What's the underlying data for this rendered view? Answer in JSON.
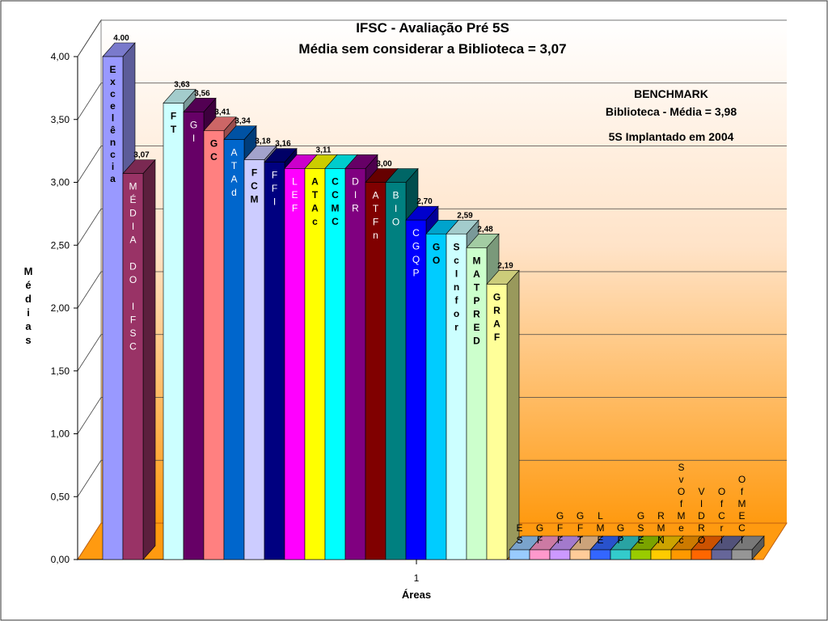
{
  "chart_data": {
    "type": "bar",
    "title": "IFSC - Avaliação Pré 5S",
    "subtitle": "Média sem considerar a Biblioteca = 3,07",
    "xlabel": "Áreas",
    "ylabel": "Médias",
    "x_tick": "1",
    "ylim": [
      0,
      4.0
    ],
    "yticks": [
      "0,00",
      "0,50",
      "1,00",
      "1,50",
      "2,00",
      "2,50",
      "3,00",
      "3,50",
      "4,00"
    ],
    "legend": "none",
    "annotation": {
      "line1": "BENCHMARK",
      "line2": "Biblioteca -  Média = 3,98",
      "line3": "5S Implantado em 2004"
    },
    "series": [
      {
        "name": "Excelência",
        "value": 4.0,
        "label": "4.00",
        "color": "#9999ff"
      },
      {
        "name": "MÉDIA DO IFSC",
        "value": 3.07,
        "label": "3,07",
        "color": "#993366"
      },
      {
        "name": "FT",
        "value": 3.63,
        "label": "3,63",
        "color": "#ccffff"
      },
      {
        "name": "GI",
        "value": 3.56,
        "label": "3,56",
        "color": "#660066"
      },
      {
        "name": "GC",
        "value": 3.41,
        "label": "3,41",
        "color": "#ff8080"
      },
      {
        "name": "ATAd",
        "value": 3.34,
        "label": "3,34",
        "color": "#0066cc"
      },
      {
        "name": "FCM",
        "value": 3.18,
        "label": "3,18",
        "color": "#ccccff"
      },
      {
        "name": "FFI",
        "value": 3.16,
        "label": "3,16",
        "color": "#000080"
      },
      {
        "name": "LEF",
        "value": 3.11,
        "label": "",
        "color": "#ff00ff"
      },
      {
        "name": "ATAc",
        "value": 3.11,
        "label": "3,11",
        "color": "#ffff00"
      },
      {
        "name": "CCMC",
        "value": 3.11,
        "label": "",
        "color": "#00ffff"
      },
      {
        "name": "DIR",
        "value": 3.11,
        "label": "",
        "color": "#800080"
      },
      {
        "name": "ATFn",
        "value": 3.0,
        "label": "3,00",
        "color": "#800000"
      },
      {
        "name": "BIO",
        "value": 3.0,
        "label": "",
        "color": "#008080"
      },
      {
        "name": "CGQP",
        "value": 2.7,
        "label": "2,70",
        "color": "#0000ff"
      },
      {
        "name": "GO",
        "value": 2.59,
        "label": "",
        "color": "#00ccff"
      },
      {
        "name": "ScInfor",
        "value": 2.59,
        "label": "2,59",
        "color": "#ccffff"
      },
      {
        "name": "MATPRED",
        "value": 2.48,
        "label": "2,48",
        "color": "#ccffcc"
      },
      {
        "name": "GRAF",
        "value": 2.19,
        "label": "2,19",
        "color": "#ffff99"
      },
      {
        "name": "ES",
        "value": 0,
        "label": "",
        "color": "#99ccff"
      },
      {
        "name": "GF",
        "value": 0,
        "label": "",
        "color": "#ff99cc"
      },
      {
        "name": "GFF",
        "value": 0,
        "label": "",
        "color": "#cc99ff"
      },
      {
        "name": "GFT",
        "value": 0,
        "label": "",
        "color": "#ffcc99"
      },
      {
        "name": "LME",
        "value": 0,
        "label": "",
        "color": "#3366ff"
      },
      {
        "name": "GP",
        "value": 0,
        "label": "",
        "color": "#33cccc"
      },
      {
        "name": "GSE",
        "value": 0,
        "label": "",
        "color": "#99cc00"
      },
      {
        "name": "RMN",
        "value": 0,
        "label": "",
        "color": "#ffcc00"
      },
      {
        "name": "SvOfMec",
        "value": 0,
        "label": "",
        "color": "#ff9900"
      },
      {
        "name": "VIDRO",
        "value": 0,
        "label": "",
        "color": "#ff6600"
      },
      {
        "name": "OfCri",
        "value": 0,
        "label": "",
        "color": "#666699"
      },
      {
        "name": "OfMECI",
        "value": 0,
        "label": "",
        "color": "#969696"
      }
    ]
  }
}
